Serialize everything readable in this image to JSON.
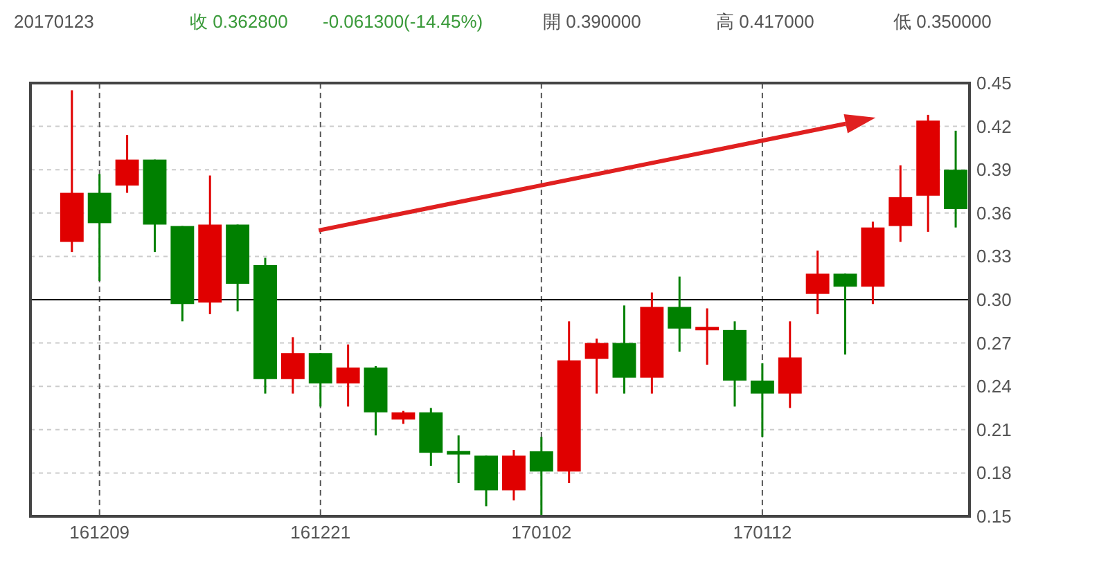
{
  "chart_data": {
    "type": "candlestick",
    "title": "20170123",
    "annotations": [
      "收 0.362800",
      "-0.061300(-14.45%)",
      "開 0.390000",
      "高 0.417000",
      "低 0.350000"
    ],
    "categories": [
      null,
      "161209",
      null,
      null,
      null,
      null,
      null,
      null,
      null,
      "161221",
      null,
      null,
      null,
      null,
      null,
      null,
      null,
      "170102",
      null,
      null,
      null,
      null,
      null,
      null,
      null,
      "170112",
      null,
      null,
      null,
      null,
      null,
      null,
      null
    ],
    "ohlc": [
      [
        0.34,
        0.445,
        0.333,
        0.374
      ],
      [
        0.374,
        0.387,
        0.313,
        0.353
      ],
      [
        0.379,
        0.414,
        0.374,
        0.397
      ],
      [
        0.397,
        0.397,
        0.333,
        0.352
      ],
      [
        0.351,
        0.351,
        0.285,
        0.297
      ],
      [
        0.298,
        0.386,
        0.29,
        0.352
      ],
      [
        0.352,
        0.352,
        0.292,
        0.311
      ],
      [
        0.324,
        0.329,
        0.235,
        0.245
      ],
      [
        0.245,
        0.274,
        0.235,
        0.263
      ],
      [
        0.263,
        0.263,
        0.226,
        0.242
      ],
      [
        0.242,
        0.269,
        0.226,
        0.253
      ],
      [
        0.253,
        0.254,
        0.206,
        0.222
      ],
      [
        0.217,
        0.223,
        0.214,
        0.222
      ],
      [
        0.222,
        0.225,
        0.185,
        0.194
      ],
      [
        0.194,
        0.206,
        0.173,
        0.194
      ],
      [
        0.192,
        0.192,
        0.157,
        0.168
      ],
      [
        0.168,
        0.196,
        0.161,
        0.192
      ],
      [
        0.195,
        0.205,
        0.15,
        0.181
      ],
      [
        0.181,
        0.285,
        0.173,
        0.258
      ],
      [
        0.259,
        0.273,
        0.235,
        0.27
      ],
      [
        0.27,
        0.296,
        0.235,
        0.246
      ],
      [
        0.246,
        0.305,
        0.235,
        0.295
      ],
      [
        0.295,
        0.316,
        0.264,
        0.28
      ],
      [
        0.28,
        0.294,
        0.255,
        0.28
      ],
      [
        0.279,
        0.285,
        0.226,
        0.244
      ],
      [
        0.244,
        0.256,
        0.205,
        0.235
      ],
      [
        0.235,
        0.285,
        0.225,
        0.26
      ],
      [
        0.304,
        0.334,
        0.29,
        0.318
      ],
      [
        0.318,
        0.318,
        0.262,
        0.309
      ],
      [
        0.309,
        0.354,
        0.297,
        0.35
      ],
      [
        0.351,
        0.393,
        0.34,
        0.371
      ],
      [
        0.372,
        0.428,
        0.347,
        0.424
      ],
      [
        0.39,
        0.417,
        0.35,
        0.3628
      ]
    ],
    "colors": [
      "#e00000",
      "#008000",
      "#e00000",
      "#008000",
      "#008000",
      "#e00000",
      "#008000",
      "#008000",
      "#e00000",
      "#008000",
      "#e00000",
      "#008000",
      "#e00000",
      "#008000",
      "#008000",
      "#008000",
      "#e00000",
      "#008000",
      "#e00000",
      "#e00000",
      "#008000",
      "#e00000",
      "#008000",
      "#e00000",
      "#008000",
      "#008000",
      "#e00000",
      "#e00000",
      "#008000",
      "#e00000",
      "#e00000",
      "#e00000",
      "#008000"
    ],
    "ylim": [
      0.15,
      0.45
    ],
    "yticks": [
      0.15,
      0.18,
      0.21,
      0.24,
      0.27,
      {
        "value": 0.3,
        "label": "0.30"
      },
      0.33,
      0.36,
      0.39,
      0.42,
      0.45
    ],
    "grid": true,
    "ref_lines": [
      {
        "axis": "y",
        "value": 0.3,
        "color": "#000000"
      }
    ]
  }
}
